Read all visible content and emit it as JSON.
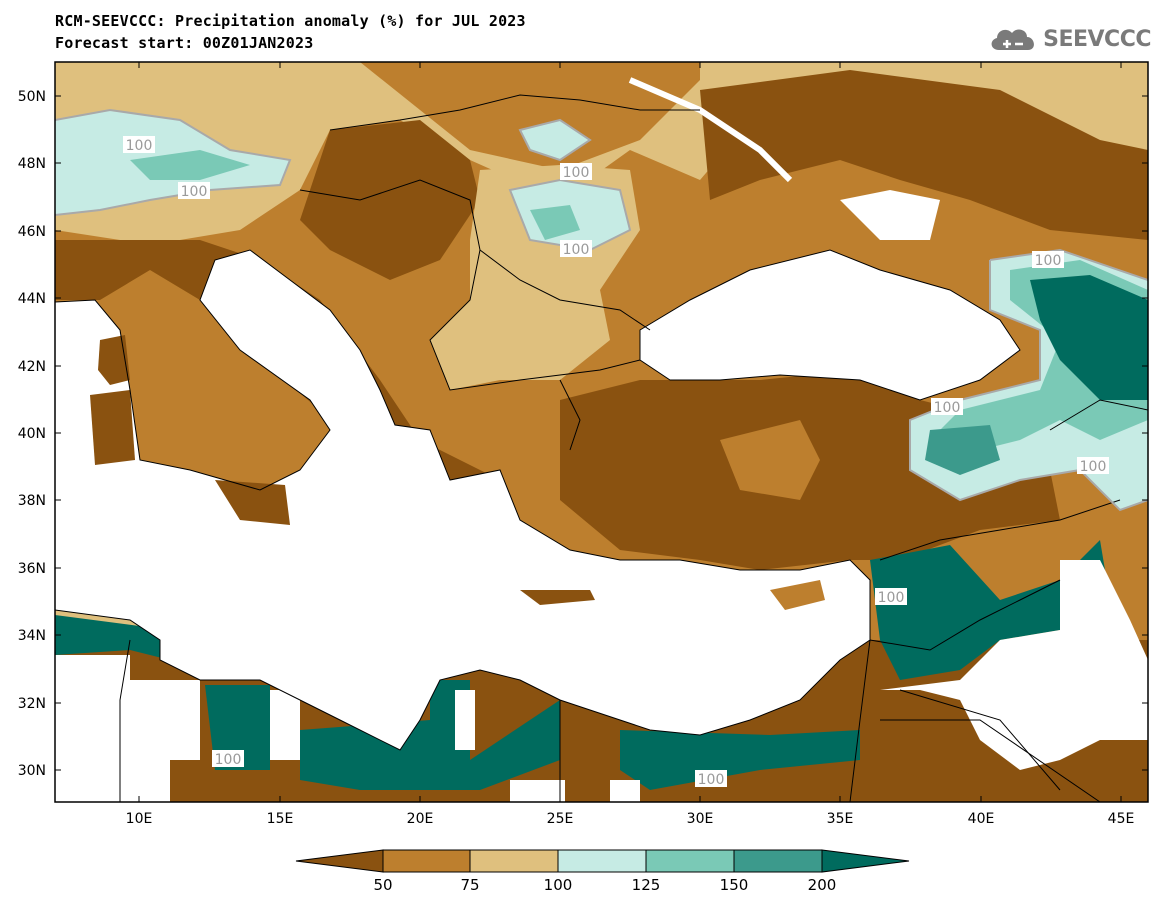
{
  "header": {
    "title_line1": "RCM-SEEVCCC: Precipitation anomaly (%) for JUL 2023",
    "title_line2": "Forecast start: 00Z01JAN2023",
    "logo_text": "SEEVCCC"
  },
  "map": {
    "lat_labels": [
      "50N",
      "48N",
      "46N",
      "44N",
      "42N",
      "40N",
      "38N",
      "36N",
      "34N",
      "32N",
      "30N"
    ],
    "lon_labels": [
      "10E",
      "15E",
      "20E",
      "25E",
      "30E",
      "35E",
      "40E",
      "45E"
    ],
    "contour_labels": [
      "100",
      "100",
      "100",
      "100",
      "100",
      "100",
      "100",
      "100",
      "100",
      "100"
    ]
  },
  "colorbar": {
    "levels": [
      "50",
      "75",
      "100",
      "125",
      "150",
      "200"
    ],
    "colors": [
      "#8a5210",
      "#bd7f2e",
      "#dfc07e",
      "#c6ebe4",
      "#7ac9b6",
      "#3c9a8c",
      "#006b5e"
    ]
  }
}
